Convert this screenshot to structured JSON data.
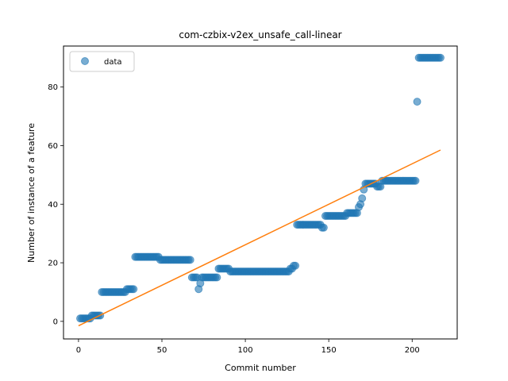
{
  "chart_data": {
    "type": "scatter",
    "title": "com-czbix-v2ex_unsafe_call-linear",
    "xlabel": "Commit number",
    "ylabel": "Number of instance of a feature",
    "xlim": [
      -9,
      227
    ],
    "ylim": [
      -6,
      94
    ],
    "xticks": [
      0,
      50,
      100,
      150,
      200
    ],
    "yticks": [
      0,
      20,
      40,
      60,
      80
    ],
    "legend": {
      "position": "top-left",
      "entries": [
        "data"
      ]
    },
    "colors": {
      "data": "#1f77b4",
      "fit": "#ff7f0e"
    },
    "series": [
      {
        "name": "data",
        "kind": "scatter",
        "segments": [
          {
            "x_start": 1,
            "x_end": 6,
            "y": 1
          },
          {
            "x_start": 7,
            "x_end": 7,
            "y": 1
          },
          {
            "x_start": 8,
            "x_end": 13,
            "y": 2
          },
          {
            "x_start": 14,
            "x_end": 28,
            "y": 10
          },
          {
            "x_start": 29,
            "x_end": 33,
            "y": 11
          },
          {
            "x_start": 34,
            "x_end": 48,
            "y": 22
          },
          {
            "x_start": 49,
            "x_end": 67,
            "y": 21
          },
          {
            "x_start": 68,
            "x_end": 71,
            "y": 15
          },
          {
            "x_start": 72,
            "x_end": 72,
            "y": 11
          },
          {
            "x_start": 73,
            "x_end": 73,
            "y": 13
          },
          {
            "x_start": 74,
            "x_end": 83,
            "y": 15
          },
          {
            "x_start": 84,
            "x_end": 90,
            "y": 18
          },
          {
            "x_start": 91,
            "x_end": 126,
            "y": 17
          },
          {
            "x_start": 127,
            "x_end": 128,
            "y": 18
          },
          {
            "x_start": 129,
            "x_end": 130,
            "y": 19
          },
          {
            "x_start": 131,
            "x_end": 145,
            "y": 33
          },
          {
            "x_start": 146,
            "x_end": 147,
            "y": 32
          },
          {
            "x_start": 148,
            "x_end": 160,
            "y": 36
          },
          {
            "x_start": 161,
            "x_end": 167,
            "y": 37
          },
          {
            "x_start": 168,
            "x_end": 168,
            "y": 39
          },
          {
            "x_start": 169,
            "x_end": 169,
            "y": 40
          },
          {
            "x_start": 170,
            "x_end": 170,
            "y": 42
          },
          {
            "x_start": 171,
            "x_end": 171,
            "y": 45
          },
          {
            "x_start": 172,
            "x_end": 178,
            "y": 47
          },
          {
            "x_start": 179,
            "x_end": 181,
            "y": 46
          },
          {
            "x_start": 182,
            "x_end": 202,
            "y": 48
          },
          {
            "x_start": 203,
            "x_end": 203,
            "y": 75
          },
          {
            "x_start": 204,
            "x_end": 217,
            "y": 90
          }
        ]
      },
      {
        "name": "",
        "kind": "line",
        "x": [
          0,
          217
        ],
        "y": [
          -1.5,
          58.5
        ]
      }
    ]
  }
}
